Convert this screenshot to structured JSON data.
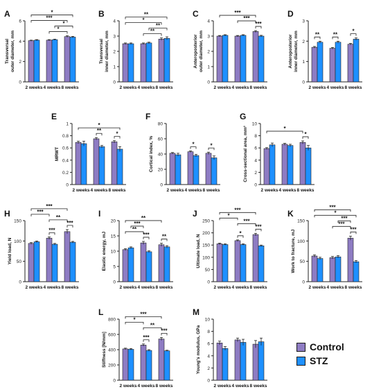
{
  "colors": {
    "control": "#8E7CC3",
    "stz": "#1E90FF",
    "axis": "#222222"
  },
  "legend": {
    "control_label": "Control",
    "stz_label": "STZ"
  },
  "chart_data": [
    {
      "id": "A",
      "type": "bar",
      "title": "A",
      "categories": [
        "2 weeks",
        "4 weeks",
        "8 weeks"
      ],
      "ylabel": [
        "Transversal",
        "outer diameter, mm"
      ],
      "ylim": [
        0,
        6
      ],
      "yticks": [
        0,
        2,
        4,
        6
      ],
      "series": [
        {
          "name": "Control",
          "values": [
            4.05,
            4.1,
            4.45
          ],
          "errors": [
            0.05,
            0.05,
            0.08
          ]
        },
        {
          "name": "STZ",
          "values": [
            4.1,
            4.15,
            4.4
          ],
          "errors": [
            0.05,
            0.05,
            0.07
          ]
        }
      ],
      "significance": [
        {
          "from": [
            0,
            0
          ],
          "to": [
            2,
            0
          ],
          "label": "***"
        },
        {
          "from": [
            0,
            0
          ],
          "to": [
            2,
            1
          ],
          "label": "*"
        },
        {
          "from": [
            1,
            0
          ],
          "to": [
            2,
            0
          ],
          "label": "*"
        },
        {
          "from": [
            1,
            1
          ],
          "to": [
            2,
            1
          ],
          "label": "*"
        }
      ]
    },
    {
      "id": "B",
      "type": "bar",
      "title": "B",
      "categories": [
        "2 weeks",
        "4 weeks",
        "8 weeks"
      ],
      "ylabel": [
        "Transversal",
        "inner diameter, mm"
      ],
      "ylim": [
        0,
        4
      ],
      "yticks": [
        0,
        1,
        2,
        3,
        4
      ],
      "series": [
        {
          "name": "Control",
          "values": [
            2.5,
            2.5,
            2.8
          ],
          "errors": [
            0.05,
            0.05,
            0.08
          ]
        },
        {
          "name": "STZ",
          "values": [
            2.5,
            2.55,
            2.85
          ],
          "errors": [
            0.05,
            0.05,
            0.1
          ]
        }
      ],
      "significance": [
        {
          "from": [
            0,
            0
          ],
          "to": [
            2,
            0
          ],
          "label": "*"
        },
        {
          "from": [
            0,
            0
          ],
          "to": [
            2,
            1
          ],
          "label": "**"
        },
        {
          "from": [
            1,
            0
          ],
          "to": [
            2,
            0
          ],
          "label": "**"
        },
        {
          "from": [
            1,
            1
          ],
          "to": [
            2,
            1
          ],
          "label": "**"
        }
      ]
    },
    {
      "id": "C",
      "type": "bar",
      "title": "C",
      "categories": [
        "2 weeks",
        "4 weeks",
        "8 weeks"
      ],
      "ylabel": [
        "Anteroposterior",
        "outer diameter, mm"
      ],
      "ylim": [
        0,
        4
      ],
      "yticks": [
        0,
        1,
        2,
        3,
        4
      ],
      "series": [
        {
          "name": "Control",
          "values": [
            3.0,
            3.0,
            3.3
          ],
          "errors": [
            0.04,
            0.04,
            0.06
          ]
        },
        {
          "name": "STZ",
          "values": [
            3.05,
            3.05,
            3.0
          ],
          "errors": [
            0.04,
            0.04,
            0.05
          ]
        }
      ],
      "significance": [
        {
          "from": [
            0,
            0
          ],
          "to": [
            2,
            0
          ],
          "label": "***"
        },
        {
          "from": [
            1,
            0
          ],
          "to": [
            2,
            0
          ],
          "label": "***"
        },
        {
          "from": [
            2,
            0
          ],
          "to": [
            2,
            1
          ],
          "label": "***"
        }
      ]
    },
    {
      "id": "D",
      "type": "bar",
      "title": "D",
      "categories": [
        "2 weeks",
        "4 weeks",
        "8 weeks"
      ],
      "ylabel": [
        "Anteroposterior",
        "inner diameter, mm"
      ],
      "ylim": [
        0,
        3
      ],
      "yticks": [
        0,
        1,
        2,
        3
      ],
      "series": [
        {
          "name": "Control",
          "values": [
            1.7,
            1.65,
            1.85
          ],
          "errors": [
            0.04,
            0.04,
            0.04
          ]
        },
        {
          "name": "STZ",
          "values": [
            1.95,
            1.95,
            2.1
          ],
          "errors": [
            0.05,
            0.05,
            0.06
          ]
        }
      ],
      "significance": [
        {
          "from": [
            0,
            0
          ],
          "to": [
            0,
            1
          ],
          "label": "**"
        },
        {
          "from": [
            1,
            0
          ],
          "to": [
            1,
            1
          ],
          "label": "**"
        },
        {
          "from": [
            2,
            0
          ],
          "to": [
            2,
            1
          ],
          "label": "*"
        }
      ]
    },
    {
      "id": "E",
      "type": "bar",
      "title": "E",
      "categories": [
        "2 weeks",
        "4 weeks",
        "8 weeks"
      ],
      "ylabel": [
        "MRWT"
      ],
      "ylim": [
        0,
        1.0
      ],
      "yticks": [
        0,
        0.2,
        0.4,
        0.6,
        0.8,
        1.0
      ],
      "series": [
        {
          "name": "Control",
          "values": [
            0.69,
            0.75,
            0.7
          ],
          "errors": [
            0.02,
            0.02,
            0.02
          ]
        },
        {
          "name": "STZ",
          "values": [
            0.67,
            0.62,
            0.58
          ],
          "errors": [
            0.04,
            0.02,
            0.04
          ]
        }
      ],
      "significance": [
        {
          "from": [
            0,
            0
          ],
          "to": [
            2,
            1
          ],
          "label": "*"
        },
        {
          "from": [
            1,
            0
          ],
          "to": [
            1,
            1
          ],
          "label": "**"
        },
        {
          "from": [
            2,
            0
          ],
          "to": [
            2,
            1
          ],
          "label": "*"
        }
      ]
    },
    {
      "id": "F",
      "type": "bar",
      "title": "F",
      "categories": [
        "2 weeks",
        "4 weeks",
        "8 weeks"
      ],
      "ylabel": [
        "Cortical index, %"
      ],
      "ylim": [
        0,
        80
      ],
      "yticks": [
        0,
        20,
        40,
        60,
        80
      ],
      "series": [
        {
          "name": "Control",
          "values": [
            41,
            43,
            41
          ],
          "errors": [
            1,
            1,
            1.5
          ]
        },
        {
          "name": "STZ",
          "values": [
            39,
            38,
            35
          ],
          "errors": [
            2,
            1.5,
            2.5
          ]
        }
      ],
      "significance": [
        {
          "from": [
            1,
            0
          ],
          "to": [
            1,
            1
          ],
          "label": "*"
        },
        {
          "from": [
            2,
            0
          ],
          "to": [
            2,
            1
          ],
          "label": "*"
        }
      ]
    },
    {
      "id": "G",
      "type": "bar",
      "title": "G",
      "categories": [
        "2 weeks",
        "4 weeks",
        "8 weeks"
      ],
      "ylabel": [
        "Cross-sectional area, mm²"
      ],
      "ylim": [
        0,
        10
      ],
      "yticks": [
        0,
        2,
        4,
        6,
        8,
        10
      ],
      "series": [
        {
          "name": "Control",
          "values": [
            5.9,
            6.6,
            6.9
          ],
          "errors": [
            0.15,
            0.15,
            0.25
          ]
        },
        {
          "name": "STZ",
          "values": [
            6.5,
            6.4,
            6.0
          ],
          "errors": [
            0.3,
            0.2,
            0.4
          ]
        }
      ],
      "significance": [
        {
          "from": [
            0,
            0
          ],
          "to": [
            2,
            0
          ],
          "label": "*"
        },
        {
          "from": [
            2,
            0
          ],
          "to": [
            2,
            1
          ],
          "label": "*"
        }
      ]
    },
    {
      "id": "H",
      "type": "bar",
      "title": "H",
      "categories": [
        "2 weeks",
        "4 weeks",
        "8 weeks"
      ],
      "ylabel": [
        "Yield load, N"
      ],
      "ylim": [
        0,
        150
      ],
      "yticks": [
        0,
        50,
        100,
        150
      ],
      "series": [
        {
          "name": "Control",
          "values": [
            94,
            107,
            123
          ],
          "errors": [
            2,
            3,
            5
          ]
        },
        {
          "name": "STZ",
          "values": [
            98,
            92,
            97
          ],
          "errors": [
            2,
            2,
            2
          ]
        }
      ],
      "significance": [
        {
          "from": [
            0,
            0
          ],
          "to": [
            2,
            0
          ],
          "label": "***"
        },
        {
          "from": [
            1,
            0
          ],
          "to": [
            2,
            0
          ],
          "label": "**"
        },
        {
          "from": [
            0,
            0
          ],
          "to": [
            1,
            0
          ],
          "label": "***"
        },
        {
          "from": [
            1,
            0
          ],
          "to": [
            1,
            1
          ],
          "label": "***"
        },
        {
          "from": [
            2,
            0
          ],
          "to": [
            2,
            1
          ],
          "label": "***"
        }
      ]
    },
    {
      "id": "I",
      "type": "bar",
      "title": "I",
      "categories": [
        "2 weeks",
        "4 weeks",
        "8 weeks"
      ],
      "ylabel": [
        "Elastic energy, mJ"
      ],
      "ylim": [
        0,
        20
      ],
      "yticks": [
        0,
        5,
        10,
        15,
        20
      ],
      "series": [
        {
          "name": "Control",
          "values": [
            10.5,
            12.7,
            12.1
          ],
          "errors": [
            0.3,
            0.5,
            0.5
          ]
        },
        {
          "name": "STZ",
          "values": [
            11.1,
            9.8,
            11.4
          ],
          "errors": [
            0.3,
            0.3,
            0.4
          ]
        }
      ],
      "significance": [
        {
          "from": [
            0,
            0
          ],
          "to": [
            2,
            0
          ],
          "label": "**"
        },
        {
          "from": [
            0,
            0
          ],
          "to": [
            1,
            0
          ],
          "label": "**"
        },
        {
          "from": [
            0,
            1
          ],
          "to": [
            1,
            0
          ],
          "label": "***"
        },
        {
          "from": [
            1,
            0
          ],
          "to": [
            1,
            1
          ],
          "label": "***"
        },
        {
          "from": [
            2,
            0
          ],
          "to": [
            2,
            1
          ],
          "label": "**"
        }
      ]
    },
    {
      "id": "J",
      "type": "bar",
      "title": "J",
      "categories": [
        "2 weeks",
        "4 weeks",
        "8 weeks"
      ],
      "ylabel": [
        "Ultimate load, N"
      ],
      "ylim": [
        0,
        250
      ],
      "yticks": [
        0,
        50,
        100,
        150,
        200,
        250
      ],
      "series": [
        {
          "name": "Control",
          "values": [
            155,
            168,
            193
          ],
          "errors": [
            3,
            3,
            5
          ]
        },
        {
          "name": "STZ",
          "values": [
            152,
            152,
            147
          ],
          "errors": [
            3,
            3,
            3
          ]
        }
      ],
      "significance": [
        {
          "from": [
            0,
            0
          ],
          "to": [
            2,
            0
          ],
          "label": "***"
        },
        {
          "from": [
            1,
            0
          ],
          "to": [
            2,
            0
          ],
          "label": "***"
        },
        {
          "from": [
            0,
            0
          ],
          "to": [
            1,
            0
          ],
          "label": "*"
        },
        {
          "from": [
            1,
            0
          ],
          "to": [
            1,
            1
          ],
          "label": "*"
        },
        {
          "from": [
            2,
            0
          ],
          "to": [
            2,
            1
          ],
          "label": "***"
        }
      ]
    },
    {
      "id": "K",
      "type": "bar",
      "title": "K",
      "categories": [
        "2 weeks",
        "4 weeks",
        "8 weeks"
      ],
      "ylabel": [
        "Work to fracture, mJ"
      ],
      "ylim": [
        0,
        150
      ],
      "yticks": [
        0,
        50,
        100,
        150
      ],
      "series": [
        {
          "name": "Control",
          "values": [
            63,
            59,
            107
          ],
          "errors": [
            3,
            3,
            5
          ]
        },
        {
          "name": "STZ",
          "values": [
            57,
            61,
            49
          ],
          "errors": [
            3,
            3,
            3
          ]
        }
      ],
      "significance": [
        {
          "from": [
            0,
            0
          ],
          "to": [
            2,
            1
          ],
          "label": "*"
        },
        {
          "from": [
            0,
            0
          ],
          "to": [
            2,
            0
          ],
          "label": "***"
        },
        {
          "from": [
            1,
            0
          ],
          "to": [
            2,
            0
          ],
          "label": "***"
        },
        {
          "from": [
            1,
            1
          ],
          "to": [
            2,
            0
          ],
          "label": "***"
        },
        {
          "from": [
            2,
            0
          ],
          "to": [
            2,
            1
          ],
          "label": "***"
        }
      ]
    },
    {
      "id": "L",
      "type": "bar",
      "title": "L",
      "categories": [
        "2 weeks",
        "4 weeks",
        "8 weeks"
      ],
      "ylabel": [
        "Stiffness [N/mm]"
      ],
      "ylim": [
        0,
        800
      ],
      "yticks": [
        0,
        200,
        400,
        600,
        800
      ],
      "series": [
        {
          "name": "Control",
          "values": [
            410,
            460,
            540
          ],
          "errors": [
            10,
            15,
            20
          ]
        },
        {
          "name": "STZ",
          "values": [
            405,
            390,
            385
          ],
          "errors": [
            10,
            10,
            8
          ]
        }
      ],
      "significance": [
        {
          "from": [
            0,
            0
          ],
          "to": [
            2,
            0
          ],
          "label": "***"
        },
        {
          "from": [
            1,
            0
          ],
          "to": [
            2,
            0
          ],
          "label": "**"
        },
        {
          "from": [
            0,
            0
          ],
          "to": [
            1,
            0
          ],
          "label": "*"
        },
        {
          "from": [
            1,
            0
          ],
          "to": [
            1,
            1
          ],
          "label": "***"
        },
        {
          "from": [
            2,
            0
          ],
          "to": [
            2,
            1
          ],
          "label": "***"
        }
      ]
    },
    {
      "id": "M",
      "type": "bar",
      "title": "M",
      "categories": [
        "2 weeks",
        "4 weeks",
        "8 weeks"
      ],
      "ylabel": [
        "Young's modulus, GPa"
      ],
      "ylim": [
        0,
        10
      ],
      "yticks": [
        0,
        2,
        4,
        6,
        8,
        10
      ],
      "series": [
        {
          "name": "Control",
          "values": [
            6.1,
            6.6,
            5.9
          ],
          "errors": [
            0.3,
            0.3,
            0.6
          ]
        },
        {
          "name": "STZ",
          "values": [
            5.2,
            6.2,
            6.3
          ],
          "errors": [
            0.3,
            0.5,
            0.6
          ]
        }
      ],
      "significance": []
    }
  ]
}
